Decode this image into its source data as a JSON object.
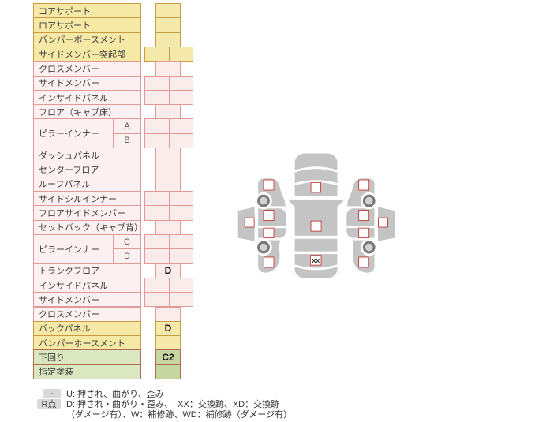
{
  "table": {
    "rows": [
      {
        "label": "コアサポート",
        "color": "yellow",
        "cell": "narrow",
        "value": ""
      },
      {
        "label": "ロアサポート",
        "color": "yellow",
        "cell": "narrow",
        "value": ""
      },
      {
        "label": "バンパーボースメント",
        "color": "yellow",
        "cell": "narrow",
        "value": ""
      },
      {
        "label": "サイドメンバー突起部",
        "color": "yellow",
        "cell": "wide",
        "value": ""
      },
      {
        "label": "クロスメンバー",
        "color": "pink",
        "cell": "narrow",
        "value": ""
      },
      {
        "label": "サイドメンバー",
        "color": "pink",
        "cell": "wide",
        "value": ""
      },
      {
        "label": "インサイドパネル",
        "color": "pink",
        "cell": "wide",
        "value": ""
      },
      {
        "label": "フロア（キャブ床）",
        "color": "pink",
        "cell": "narrow",
        "value": ""
      },
      {
        "label": "ピラーインナー",
        "sub": "A",
        "labelspan": 2,
        "color": "pink",
        "cell": "wide",
        "value": ""
      },
      {
        "nolabel": true,
        "sub": "B",
        "color": "pink",
        "cell": "wide",
        "value": ""
      },
      {
        "label": "ダッシュパネル",
        "color": "pink",
        "cell": "narrow",
        "value": ""
      },
      {
        "label": "センターフロア",
        "color": "pink",
        "cell": "narrow",
        "value": ""
      },
      {
        "label": "ルーフパネル",
        "color": "pink",
        "cell": "narrow",
        "value": ""
      },
      {
        "label": "サイドシルインナー",
        "color": "pink",
        "cell": "wide",
        "value": ""
      },
      {
        "label": "フロアサイドメンバー",
        "color": "pink",
        "cell": "wide",
        "value": ""
      },
      {
        "label": "セットバック（キャブ背）",
        "color": "pink",
        "cell": "narrow",
        "value": ""
      },
      {
        "label": "ピラーインナー",
        "sub": "C",
        "labelspan": 2,
        "color": "pink",
        "cell": "wide",
        "value": ""
      },
      {
        "nolabel": true,
        "sub": "D",
        "color": "pink",
        "cell": "wide",
        "value": ""
      },
      {
        "label": "トランクフロア",
        "color": "pink",
        "cell": "narrow",
        "value": "D"
      },
      {
        "label": "インサイドパネル",
        "color": "pink",
        "cell": "wide",
        "value": ""
      },
      {
        "label": "サイドメンバー",
        "color": "pink",
        "cell": "wide",
        "value": ""
      },
      {
        "label": "クロスメンバー",
        "color": "pink",
        "cell": "narrow",
        "value": ""
      },
      {
        "label": "バックパネル",
        "color": "yellow",
        "cell": "narrow",
        "value": "D"
      },
      {
        "label": "バンパーホースメント",
        "color": "yellow",
        "cell": "narrow",
        "value": ""
      },
      {
        "label": "下回り",
        "color": "green",
        "cell": "narrow",
        "value": "C2"
      },
      {
        "label": "指定塗装",
        "color": "green",
        "cell": "narrow",
        "value": ""
      }
    ],
    "palette": {
      "yellow": {
        "bg": "#f6e9a6",
        "border": "#c99b43",
        "cellBg": "#f5e8ab"
      },
      "pink": {
        "bg": "#fdf0f0",
        "border": "#e09a9a",
        "cellBg": "#fbecec"
      },
      "green": {
        "bg": "#dae7c0",
        "border": "#b06d52",
        "cellBg": "#c7d6a0"
      }
    }
  },
  "legend": {
    "key1": "-",
    "line1": "U: 押され、曲がり、歪み",
    "key2": "R点",
    "line2": "D: 押され・曲がり・歪み、  XX：交換跡、XD：交換跡",
    "line3": "（ダメージ有）、W：補修跡、WD：補修跡（ダメージ有）"
  },
  "diagram": {
    "trunk_mark": "XX",
    "colors": {
      "body_gray": "#c4c4c4",
      "wheel_ring": "#7a7a7a",
      "wheel_hub": "#d2d2d2",
      "checkpoint_border": "#c53030",
      "checkpoint_fill": "#fdfdfd"
    }
  }
}
